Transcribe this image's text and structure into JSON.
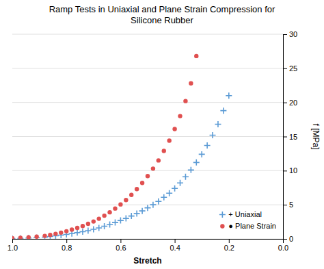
{
  "chart_data": {
    "type": "scatter",
    "title": "Ramp Tests in Uniaxial and Plane Strain Compression for\nSilicone Rubber",
    "x_label": "Stretch",
    "y_label": "f [MPa]",
    "xlim": [
      1.0,
      0.0
    ],
    "ylim": [
      0,
      30
    ],
    "xticks": [
      {
        "value": 1.0,
        "label": "1.0"
      },
      0.8,
      0.6,
      0.4,
      0.2,
      {
        "value": 0.0,
        "label": "0.0"
      }
    ],
    "yticks": [
      0,
      5,
      10,
      15,
      20,
      25,
      30
    ],
    "grid": "y",
    "legend": "lower right",
    "series": [
      {
        "name": "+ Uniaxial",
        "color": "#5B9BD5",
        "marker": "plus",
        "x": [
          1.0,
          0.97,
          0.94,
          0.91,
          0.88,
          0.86,
          0.84,
          0.82,
          0.8,
          0.78,
          0.76,
          0.74,
          0.72,
          0.7,
          0.68,
          0.66,
          0.64,
          0.62,
          0.6,
          0.58,
          0.56,
          0.54,
          0.52,
          0.5,
          0.48,
          0.46,
          0.44,
          0.42,
          0.4,
          0.38,
          0.36,
          0.34,
          0.32,
          0.3,
          0.28,
          0.26,
          0.24,
          0.22,
          0.2
        ],
        "values": [
          0.05,
          0.08,
          0.12,
          0.18,
          0.25,
          0.35,
          0.45,
          0.55,
          0.65,
          0.78,
          0.92,
          1.05,
          1.2,
          1.4,
          1.6,
          1.85,
          2.1,
          2.4,
          2.7,
          3.0,
          3.35,
          3.7,
          4.1,
          4.55,
          5.0,
          5.5,
          6.1,
          6.7,
          7.4,
          8.2,
          9.1,
          10.1,
          11.2,
          12.4,
          13.7,
          15.2,
          16.8,
          18.8,
          21.0
        ]
      },
      {
        "name": "● Plane Strain",
        "color": "#E05050",
        "marker": "circle",
        "x": [
          1.0,
          0.97,
          0.94,
          0.91,
          0.88,
          0.86,
          0.84,
          0.82,
          0.8,
          0.78,
          0.76,
          0.74,
          0.72,
          0.7,
          0.68,
          0.66,
          0.64,
          0.62,
          0.6,
          0.58,
          0.56,
          0.54,
          0.52,
          0.5,
          0.48,
          0.46,
          0.44,
          0.42,
          0.4,
          0.38,
          0.36,
          0.34,
          0.32
        ],
        "values": [
          0.1,
          0.15,
          0.22,
          0.32,
          0.44,
          0.58,
          0.74,
          0.92,
          1.12,
          1.35,
          1.6,
          1.88,
          2.2,
          2.55,
          2.95,
          3.4,
          3.9,
          4.45,
          5.05,
          5.7,
          6.45,
          7.3,
          8.2,
          9.2,
          10.3,
          11.5,
          12.9,
          14.4,
          16.1,
          18.0,
          20.2,
          22.8,
          26.8
        ]
      }
    ]
  }
}
